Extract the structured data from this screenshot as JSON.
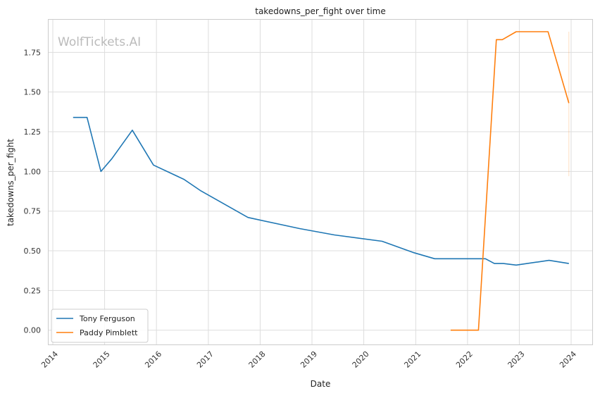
{
  "watermark": "WolfTickets.AI",
  "chart_data": {
    "type": "line",
    "title": "takedowns_per_fight over time",
    "xlabel": "Date",
    "ylabel": "takedowns_per_fight",
    "x_ticks": [
      "2014",
      "2015",
      "2016",
      "2017",
      "2018",
      "2019",
      "2020",
      "2021",
      "2022",
      "2023",
      "2024"
    ],
    "y_ticks": [
      "0.00",
      "0.25",
      "0.50",
      "0.75",
      "1.00",
      "1.25",
      "1.50",
      "1.75"
    ],
    "xlim": [
      "2014-01-01",
      "2024-01-01"
    ],
    "ylim": [
      -0.09,
      1.96
    ],
    "grid": true,
    "legend_position": "lower-left",
    "series": [
      {
        "name": "Tony Ferguson",
        "color": "#1f77b4",
        "points": [
          [
            "2014-05-24",
            1.34
          ],
          [
            "2014-08-30",
            1.34
          ],
          [
            "2014-12-06",
            1.0
          ],
          [
            "2015-02-21",
            1.08
          ],
          [
            "2015-07-15",
            1.26
          ],
          [
            "2015-12-11",
            1.04
          ],
          [
            "2016-07-13",
            0.95
          ],
          [
            "2016-11-05",
            0.88
          ],
          [
            "2017-10-07",
            0.71
          ],
          [
            "2018-10-06",
            0.64
          ],
          [
            "2019-06-08",
            0.6
          ],
          [
            "2020-05-09",
            0.56
          ],
          [
            "2020-12-12",
            0.49
          ],
          [
            "2021-05-15",
            0.45
          ],
          [
            "2022-05-07",
            0.45
          ],
          [
            "2022-07-09",
            0.42
          ],
          [
            "2022-09-10",
            0.42
          ],
          [
            "2022-12-10",
            0.41
          ],
          [
            "2023-07-29",
            0.44
          ],
          [
            "2023-12-16",
            0.42
          ]
        ]
      },
      {
        "name": "Paddy Pimblett",
        "color": "#ff7f0e",
        "points": [
          [
            "2021-09-04",
            0.0
          ],
          [
            "2022-03-19",
            0.0
          ],
          [
            "2022-07-23",
            1.83
          ],
          [
            "2022-09-03",
            1.83
          ],
          [
            "2022-12-10",
            1.88
          ],
          [
            "2023-07-22",
            1.88
          ],
          [
            "2023-12-16",
            1.43
          ]
        ],
        "band": {
          "date": "2023-12-16",
          "low": 0.97,
          "high": 1.88
        }
      }
    ]
  }
}
